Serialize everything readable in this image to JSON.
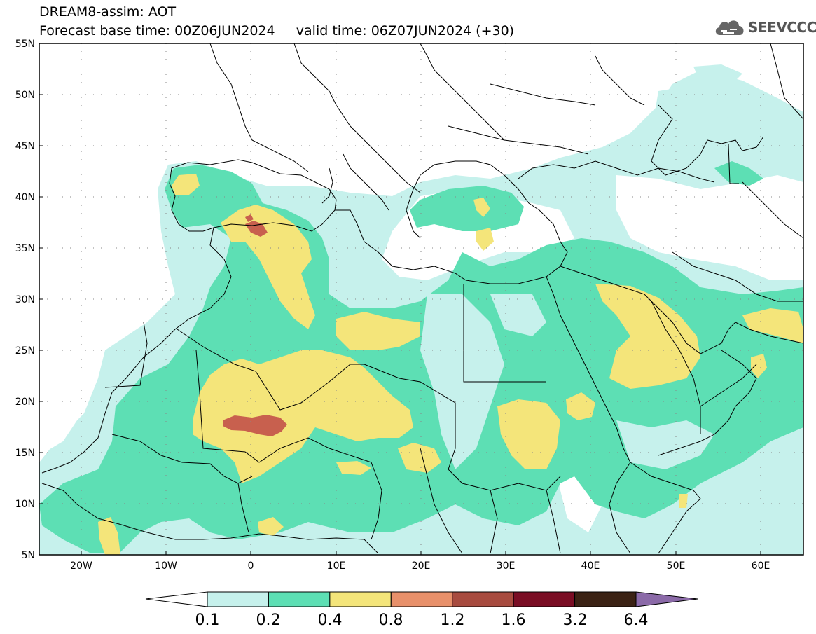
{
  "header": {
    "title_line1": "DREAM8-assim: AOT",
    "title_line2": "Forecast base time: 00Z06JUN2024     valid time: 06Z07JUN2024 (+30)",
    "brand": "SEEVCCC"
  },
  "map": {
    "lat_labels": [
      "55N",
      "50N",
      "45N",
      "40N",
      "35N",
      "30N",
      "25N",
      "20N",
      "15N",
      "10N",
      "5N"
    ],
    "lon_labels": [
      "20W",
      "10W",
      "0",
      "10E",
      "20E",
      "30E",
      "40E",
      "50E",
      "60E"
    ]
  },
  "colorbar": {
    "labels": [
      "0.1",
      "0.2",
      "0.4",
      "0.8",
      "1.2",
      "1.6",
      "3.2",
      "6.4"
    ],
    "colors": [
      "#c6f1ec",
      "#5ddfb4",
      "#f4e57a",
      "#e8906a",
      "#a84b3f",
      "#7a0d24",
      "#3b2214",
      "#8b6aa8"
    ]
  },
  "colors": {
    "low": "#c6f1ec",
    "moderate": "#5ddfb4",
    "high": "#f4e57a",
    "very_high": "#e8906a",
    "extreme": "#c8604e"
  }
}
